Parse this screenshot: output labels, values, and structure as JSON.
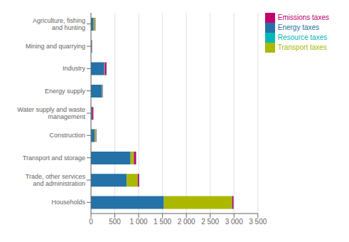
{
  "chart_data": {
    "type": "bar",
    "orientation": "horizontal",
    "stacked": true,
    "categories": [
      "Agriculture, fishing and hunting",
      "Mining and quarrying",
      "Industry",
      "Energy supply",
      "Water supply and waste management",
      "Construction",
      "Transport and storage",
      "Trade, other services and administration",
      "Households"
    ],
    "series": [
      {
        "name": "Energy taxes",
        "color": "#2472a8",
        "values": [
          55,
          8,
          280,
          230,
          15,
          80,
          830,
          750,
          1530
        ]
      },
      {
        "name": "Transport taxes",
        "color": "#aab800",
        "values": [
          28,
          3,
          10,
          8,
          5,
          20,
          70,
          230,
          1430
        ]
      },
      {
        "name": "Emissions taxes",
        "color": "#c0006e",
        "values": [
          8,
          10,
          35,
          8,
          28,
          12,
          45,
          30,
          30
        ]
      },
      {
        "name": "Resource taxes",
        "color": "#00b8b8",
        "values": [
          5,
          3,
          5,
          5,
          5,
          5,
          5,
          5,
          5
        ]
      }
    ],
    "xlim": [
      0,
      3500
    ],
    "xticks": [
      0,
      500,
      {
        "value": 1000,
        "label": "1 000"
      },
      {
        "value": 1500,
        "label": "1 500"
      },
      {
        "value": 2000,
        "label": "2 000"
      },
      {
        "value": 2500,
        "label": "2 500"
      },
      {
        "value": 3000,
        "label": "3 000"
      },
      {
        "value": 3500,
        "label": "3 500"
      }
    ],
    "grid": true,
    "legend": "right"
  }
}
